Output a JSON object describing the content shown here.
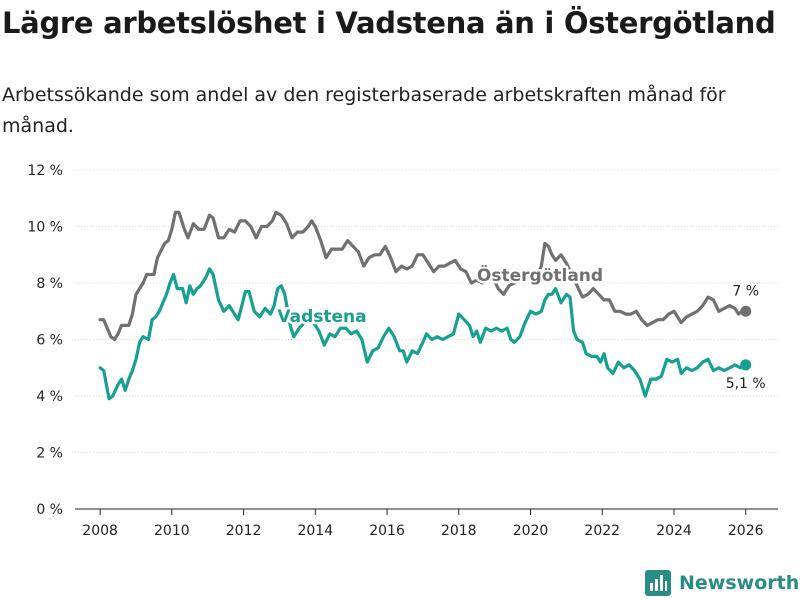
{
  "title": "Lägre arbetslöshet i Vadstena än i Östergötland",
  "subtitle": "Arbetssökande som andel av den registerbaserade arbetskraften månad för månad.",
  "brand": {
    "name": "Newsworthy"
  },
  "colors": {
    "ostergotland": "#707070",
    "vadstena": "#16a091",
    "grid": "#dcdcdc",
    "axis": "#222222"
  },
  "chart_data": {
    "type": "line",
    "title": "Lägre arbetslöshet i Vadstena än i Östergötland",
    "xlabel": "",
    "ylabel": "",
    "xlim": [
      2007.3,
      2026.9
    ],
    "ylim": [
      0,
      12
    ],
    "x_ticks": [
      2008,
      2010,
      2012,
      2014,
      2016,
      2018,
      2020,
      2022,
      2024,
      2026
    ],
    "y_ticks": [
      0,
      2,
      4,
      6,
      8,
      10,
      12
    ],
    "y_tick_labels": [
      "0 %",
      "2 %",
      "4 %",
      "6 %",
      "8 %",
      "10 %",
      "12 %"
    ],
    "grid": true,
    "series": [
      {
        "name": "Östergötland",
        "end_label": "7 %",
        "points": [
          [
            2008.0,
            6.7
          ],
          [
            2008.1,
            6.7
          ],
          [
            2008.3,
            6.1
          ],
          [
            2008.4,
            6.0
          ],
          [
            2008.5,
            6.2
          ],
          [
            2008.6,
            6.5
          ],
          [
            2008.8,
            6.5
          ],
          [
            2008.9,
            6.9
          ],
          [
            2009.0,
            7.6
          ],
          [
            2009.2,
            8.0
          ],
          [
            2009.3,
            8.3
          ],
          [
            2009.5,
            8.3
          ],
          [
            2009.6,
            8.9
          ],
          [
            2009.8,
            9.4
          ],
          [
            2009.9,
            9.5
          ],
          [
            2010.0,
            9.9
          ],
          [
            2010.1,
            10.5
          ],
          [
            2010.2,
            10.5
          ],
          [
            2010.35,
            9.9
          ],
          [
            2010.45,
            9.6
          ],
          [
            2010.6,
            10.1
          ],
          [
            2010.75,
            9.9
          ],
          [
            2010.9,
            9.9
          ],
          [
            2011.05,
            10.4
          ],
          [
            2011.15,
            10.3
          ],
          [
            2011.3,
            9.6
          ],
          [
            2011.45,
            9.6
          ],
          [
            2011.6,
            9.9
          ],
          [
            2011.75,
            9.8
          ],
          [
            2011.9,
            10.2
          ],
          [
            2012.05,
            10.2
          ],
          [
            2012.2,
            10.0
          ],
          [
            2012.35,
            9.6
          ],
          [
            2012.5,
            10.0
          ],
          [
            2012.65,
            10.0
          ],
          [
            2012.8,
            10.2
          ],
          [
            2012.9,
            10.5
          ],
          [
            2013.05,
            10.4
          ],
          [
            2013.2,
            10.1
          ],
          [
            2013.35,
            9.6
          ],
          [
            2013.5,
            9.8
          ],
          [
            2013.65,
            9.8
          ],
          [
            2013.8,
            10.0
          ],
          [
            2013.9,
            10.2
          ],
          [
            2014.0,
            10.0
          ],
          [
            2014.15,
            9.5
          ],
          [
            2014.3,
            8.9
          ],
          [
            2014.45,
            9.2
          ],
          [
            2014.6,
            9.2
          ],
          [
            2014.75,
            9.2
          ],
          [
            2014.9,
            9.5
          ],
          [
            2015.05,
            9.3
          ],
          [
            2015.2,
            9.1
          ],
          [
            2015.35,
            8.6
          ],
          [
            2015.5,
            8.9
          ],
          [
            2015.65,
            9.0
          ],
          [
            2015.8,
            9.0
          ],
          [
            2015.95,
            9.3
          ],
          [
            2016.1,
            8.9
          ],
          [
            2016.25,
            8.4
          ],
          [
            2016.4,
            8.6
          ],
          [
            2016.55,
            8.5
          ],
          [
            2016.7,
            8.6
          ],
          [
            2016.85,
            9.0
          ],
          [
            2017.0,
            9.0
          ],
          [
            2017.15,
            8.7
          ],
          [
            2017.3,
            8.4
          ],
          [
            2017.45,
            8.6
          ],
          [
            2017.6,
            8.6
          ],
          [
            2017.75,
            8.7
          ],
          [
            2017.9,
            8.8
          ],
          [
            2018.05,
            8.5
          ],
          [
            2018.2,
            8.4
          ],
          [
            2018.35,
            8.0
          ],
          [
            2018.5,
            8.1
          ],
          [
            2018.65,
            8.0
          ],
          [
            2018.8,
            8.2
          ],
          [
            2018.95,
            8.2
          ],
          [
            2019.1,
            7.8
          ],
          [
            2019.25,
            7.6
          ],
          [
            2019.4,
            7.9
          ],
          [
            2019.55,
            8.0
          ],
          [
            2019.7,
            8.2
          ],
          [
            2019.85,
            8.4
          ],
          [
            2020.0,
            8.3
          ],
          [
            2020.15,
            8.1
          ],
          [
            2020.3,
            8.6
          ],
          [
            2020.4,
            9.4
          ],
          [
            2020.5,
            9.3
          ],
          [
            2020.6,
            9.0
          ],
          [
            2020.7,
            8.8
          ],
          [
            2020.85,
            9.0
          ],
          [
            2021.0,
            8.7
          ],
          [
            2021.15,
            8.3
          ],
          [
            2021.3,
            7.9
          ],
          [
            2021.45,
            7.5
          ],
          [
            2021.6,
            7.6
          ],
          [
            2021.75,
            7.8
          ],
          [
            2021.9,
            7.6
          ],
          [
            2022.05,
            7.4
          ],
          [
            2022.2,
            7.4
          ],
          [
            2022.35,
            7.0
          ],
          [
            2022.5,
            7.0
          ],
          [
            2022.65,
            6.9
          ],
          [
            2022.8,
            6.9
          ],
          [
            2022.95,
            7.0
          ],
          [
            2023.1,
            6.7
          ],
          [
            2023.25,
            6.5
          ],
          [
            2023.4,
            6.6
          ],
          [
            2023.55,
            6.7
          ],
          [
            2023.7,
            6.7
          ],
          [
            2023.85,
            6.9
          ],
          [
            2024.0,
            7.0
          ],
          [
            2024.1,
            6.8
          ],
          [
            2024.2,
            6.6
          ],
          [
            2024.35,
            6.8
          ],
          [
            2024.5,
            6.9
          ],
          [
            2024.65,
            7.0
          ],
          [
            2024.8,
            7.2
          ],
          [
            2024.95,
            7.5
          ],
          [
            2025.1,
            7.4
          ],
          [
            2025.25,
            7.0
          ],
          [
            2025.4,
            7.1
          ],
          [
            2025.55,
            7.2
          ],
          [
            2025.7,
            7.1
          ],
          [
            2025.8,
            6.9
          ],
          [
            2025.9,
            7.0
          ],
          [
            2026.0,
            7.0
          ]
        ]
      },
      {
        "name": "Vadstena",
        "end_label": "5,1 %",
        "points": [
          [
            2008.0,
            5.0
          ],
          [
            2008.1,
            4.9
          ],
          [
            2008.25,
            3.9
          ],
          [
            2008.35,
            4.0
          ],
          [
            2008.5,
            4.4
          ],
          [
            2008.6,
            4.6
          ],
          [
            2008.7,
            4.2
          ],
          [
            2008.8,
            4.6
          ],
          [
            2008.9,
            4.9
          ],
          [
            2009.0,
            5.3
          ],
          [
            2009.1,
            5.9
          ],
          [
            2009.2,
            6.1
          ],
          [
            2009.35,
            6.0
          ],
          [
            2009.45,
            6.7
          ],
          [
            2009.55,
            6.8
          ],
          [
            2009.65,
            7.0
          ],
          [
            2009.75,
            7.3
          ],
          [
            2009.85,
            7.6
          ],
          [
            2009.95,
            8.0
          ],
          [
            2010.05,
            8.3
          ],
          [
            2010.15,
            7.8
          ],
          [
            2010.3,
            7.8
          ],
          [
            2010.4,
            7.3
          ],
          [
            2010.5,
            7.9
          ],
          [
            2010.6,
            7.6
          ],
          [
            2010.7,
            7.8
          ],
          [
            2010.8,
            7.9
          ],
          [
            2010.95,
            8.2
          ],
          [
            2011.05,
            8.5
          ],
          [
            2011.15,
            8.3
          ],
          [
            2011.3,
            7.4
          ],
          [
            2011.45,
            7.0
          ],
          [
            2011.6,
            7.2
          ],
          [
            2011.75,
            6.9
          ],
          [
            2011.85,
            6.7
          ],
          [
            2011.95,
            7.2
          ],
          [
            2012.05,
            7.7
          ],
          [
            2012.15,
            7.7
          ],
          [
            2012.3,
            7.0
          ],
          [
            2012.45,
            6.8
          ],
          [
            2012.6,
            7.1
          ],
          [
            2012.75,
            6.9
          ],
          [
            2012.85,
            7.2
          ],
          [
            2012.95,
            7.8
          ],
          [
            2013.05,
            7.9
          ],
          [
            2013.15,
            7.6
          ],
          [
            2013.3,
            6.5
          ],
          [
            2013.4,
            6.1
          ],
          [
            2013.55,
            6.4
          ],
          [
            2013.7,
            6.6
          ],
          [
            2013.85,
            6.7
          ],
          [
            2013.95,
            6.6
          ],
          [
            2014.1,
            6.3
          ],
          [
            2014.25,
            5.8
          ],
          [
            2014.4,
            6.2
          ],
          [
            2014.55,
            6.1
          ],
          [
            2014.7,
            6.4
          ],
          [
            2014.85,
            6.4
          ],
          [
            2015.0,
            6.2
          ],
          [
            2015.15,
            6.3
          ],
          [
            2015.3,
            6.0
          ],
          [
            2015.45,
            5.2
          ],
          [
            2015.6,
            5.6
          ],
          [
            2015.75,
            5.7
          ],
          [
            2015.9,
            6.1
          ],
          [
            2016.05,
            6.4
          ],
          [
            2016.2,
            6.1
          ],
          [
            2016.35,
            5.6
          ],
          [
            2016.45,
            5.6
          ],
          [
            2016.55,
            5.2
          ],
          [
            2016.7,
            5.6
          ],
          [
            2016.85,
            5.5
          ],
          [
            2017.0,
            5.9
          ],
          [
            2017.1,
            6.2
          ],
          [
            2017.25,
            6.0
          ],
          [
            2017.4,
            6.1
          ],
          [
            2017.55,
            6.0
          ],
          [
            2017.7,
            6.1
          ],
          [
            2017.85,
            6.2
          ],
          [
            2018.0,
            6.9
          ],
          [
            2018.15,
            6.7
          ],
          [
            2018.3,
            6.5
          ],
          [
            2018.4,
            6.1
          ],
          [
            2018.5,
            6.3
          ],
          [
            2018.6,
            5.9
          ],
          [
            2018.75,
            6.4
          ],
          [
            2018.9,
            6.3
          ],
          [
            2019.05,
            6.4
          ],
          [
            2019.2,
            6.3
          ],
          [
            2019.35,
            6.4
          ],
          [
            2019.45,
            6.0
          ],
          [
            2019.55,
            5.9
          ],
          [
            2019.7,
            6.1
          ],
          [
            2019.85,
            6.6
          ],
          [
            2020.0,
            7.0
          ],
          [
            2020.15,
            6.9
          ],
          [
            2020.3,
            7.0
          ],
          [
            2020.4,
            7.4
          ],
          [
            2020.5,
            7.6
          ],
          [
            2020.6,
            7.6
          ],
          [
            2020.7,
            7.8
          ],
          [
            2020.85,
            7.3
          ],
          [
            2021.0,
            7.6
          ],
          [
            2021.1,
            7.5
          ],
          [
            2021.2,
            6.3
          ],
          [
            2021.3,
            6.0
          ],
          [
            2021.45,
            5.9
          ],
          [
            2021.55,
            5.5
          ],
          [
            2021.7,
            5.4
          ],
          [
            2021.85,
            5.4
          ],
          [
            2021.95,
            5.2
          ],
          [
            2022.05,
            5.5
          ],
          [
            2022.15,
            5.0
          ],
          [
            2022.3,
            4.8
          ],
          [
            2022.45,
            5.2
          ],
          [
            2022.6,
            5.0
          ],
          [
            2022.75,
            5.1
          ],
          [
            2022.9,
            4.9
          ],
          [
            2023.05,
            4.6
          ],
          [
            2023.2,
            4.0
          ],
          [
            2023.35,
            4.6
          ],
          [
            2023.5,
            4.6
          ],
          [
            2023.65,
            4.7
          ],
          [
            2023.8,
            5.3
          ],
          [
            2023.95,
            5.2
          ],
          [
            2024.1,
            5.3
          ],
          [
            2024.2,
            4.8
          ],
          [
            2024.35,
            5.0
          ],
          [
            2024.5,
            4.9
          ],
          [
            2024.65,
            5.0
          ],
          [
            2024.8,
            5.2
          ],
          [
            2024.95,
            5.3
          ],
          [
            2025.1,
            4.9
          ],
          [
            2025.25,
            5.0
          ],
          [
            2025.4,
            4.9
          ],
          [
            2025.55,
            5.0
          ],
          [
            2025.7,
            5.1
          ],
          [
            2025.85,
            5.0
          ],
          [
            2026.0,
            5.1
          ]
        ]
      }
    ]
  }
}
